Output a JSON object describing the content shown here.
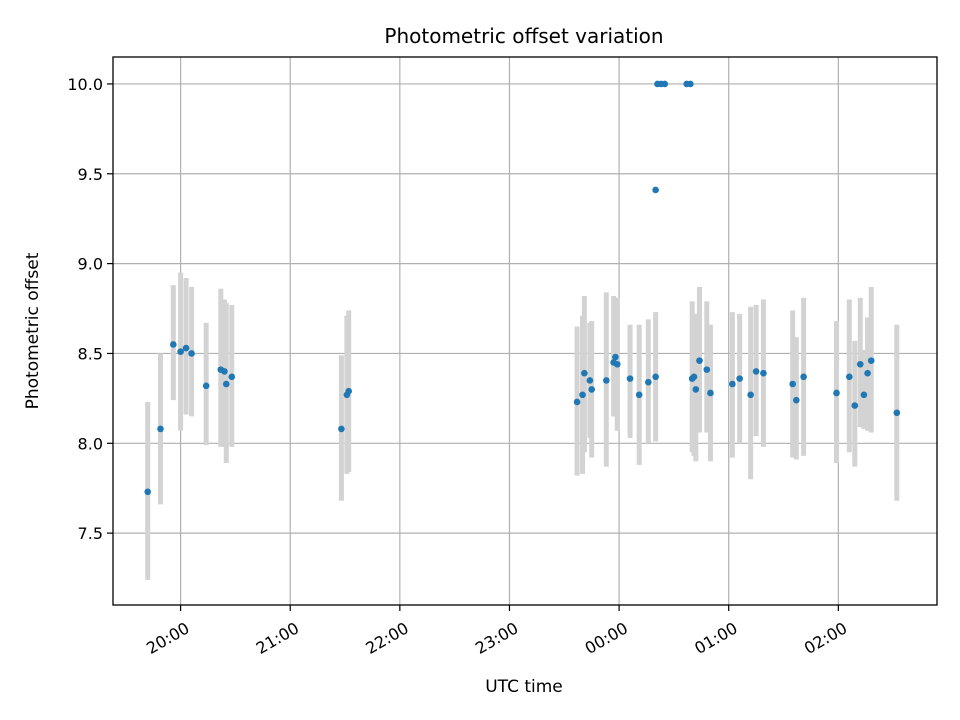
{
  "chart_data": {
    "type": "scatter",
    "title": "Photometric offset variation",
    "xlabel": "UTC time",
    "ylabel": "Photometric offset",
    "xlim": [
      "19:23",
      "02:54"
    ],
    "ylim": [
      7.1,
      10.15
    ],
    "yticks": [
      7.5,
      8.0,
      8.5,
      9.0,
      9.5,
      10.0
    ],
    "xticks": [
      "20:00",
      "21:00",
      "22:00",
      "23:00",
      "00:00",
      "01:00",
      "02:00"
    ],
    "grid": true,
    "colors": {
      "points": "#1f77b4",
      "errorbars": "#d3d3d3",
      "grid": "#b0b0b0"
    },
    "points": [
      {
        "x": "19:42",
        "y": 7.73,
        "lo": 7.24,
        "hi": 8.23
      },
      {
        "x": "19:49",
        "y": 8.08,
        "lo": 7.66,
        "hi": 8.5
      },
      {
        "x": "19:56",
        "y": 8.55,
        "lo": 8.24,
        "hi": 8.88
      },
      {
        "x": "20:00",
        "y": 8.51,
        "lo": 8.07,
        "hi": 8.95
      },
      {
        "x": "20:03",
        "y": 8.53,
        "lo": 8.16,
        "hi": 8.92
      },
      {
        "x": "20:06",
        "y": 8.5,
        "lo": 8.15,
        "hi": 8.87
      },
      {
        "x": "20:14",
        "y": 8.32,
        "lo": 7.99,
        "hi": 8.67
      },
      {
        "x": "20:22",
        "y": 8.41,
        "lo": 7.98,
        "hi": 8.86
      },
      {
        "x": "20:24",
        "y": 8.4,
        "lo": 7.98,
        "hi": 8.8
      },
      {
        "x": "20:25",
        "y": 8.33,
        "lo": 7.89,
        "hi": 8.78
      },
      {
        "x": "20:28",
        "y": 8.37,
        "lo": 7.98,
        "hi": 8.77
      },
      {
        "x": "21:28",
        "y": 8.08,
        "lo": 7.68,
        "hi": 8.49
      },
      {
        "x": "21:31",
        "y": 8.27,
        "lo": 7.83,
        "hi": 8.71
      },
      {
        "x": "21:32",
        "y": 8.29,
        "lo": 7.84,
        "hi": 8.74
      },
      {
        "x": "23:37",
        "y": 8.23,
        "lo": 7.82,
        "hi": 8.65
      },
      {
        "x": "23:40",
        "y": 8.27,
        "lo": 7.83,
        "hi": 8.71
      },
      {
        "x": "23:41",
        "y": 8.39,
        "lo": 7.95,
        "hi": 8.82
      },
      {
        "x": "23:44",
        "y": 8.35,
        "lo": 8.03,
        "hi": 8.67
      },
      {
        "x": "23:45",
        "y": 8.3,
        "lo": 7.92,
        "hi": 8.68
      },
      {
        "x": "23:53",
        "y": 8.35,
        "lo": 7.87,
        "hi": 8.84
      },
      {
        "x": "23:57",
        "y": 8.45,
        "lo": 8.15,
        "hi": 8.82
      },
      {
        "x": "23:58",
        "y": 8.48,
        "lo": 8.16,
        "hi": 8.8
      },
      {
        "x": "23:59",
        "y": 8.44,
        "lo": 8.07,
        "hi": 8.81
      },
      {
        "x": "00:06",
        "y": 8.36,
        "lo": 8.03,
        "hi": 8.66
      },
      {
        "x": "00:11",
        "y": 8.27,
        "lo": 7.88,
        "hi": 8.66
      },
      {
        "x": "00:16",
        "y": 8.34,
        "lo": 8.0,
        "hi": 8.69
      },
      {
        "x": "00:20",
        "y": 8.37,
        "lo": 8.01,
        "hi": 8.73
      },
      {
        "x": "00:20",
        "y": 9.41
      },
      {
        "x": "00:21",
        "y": 10.0
      },
      {
        "x": "00:23",
        "y": 10.0
      },
      {
        "x": "00:25",
        "y": 10.0
      },
      {
        "x": "00:37",
        "y": 10.0
      },
      {
        "x": "00:39",
        "y": 10.0
      },
      {
        "x": "00:40",
        "y": 8.36,
        "lo": 7.95,
        "hi": 8.79
      },
      {
        "x": "00:41",
        "y": 8.37,
        "lo": 7.93,
        "hi": 8.72
      },
      {
        "x": "00:42",
        "y": 8.3,
        "lo": 7.9,
        "hi": 8.72
      },
      {
        "x": "00:44",
        "y": 8.46,
        "lo": 8.06,
        "hi": 8.87
      },
      {
        "x": "00:48",
        "y": 8.41,
        "lo": 8.06,
        "hi": 8.79
      },
      {
        "x": "00:50",
        "y": 8.28,
        "lo": 7.9,
        "hi": 8.66
      },
      {
        "x": "01:02",
        "y": 8.33,
        "lo": 7.92,
        "hi": 8.73
      },
      {
        "x": "01:06",
        "y": 8.36,
        "lo": 8.0,
        "hi": 8.72
      },
      {
        "x": "01:12",
        "y": 8.27,
        "lo": 7.8,
        "hi": 8.76
      },
      {
        "x": "01:15",
        "y": 8.4,
        "lo": 8.04,
        "hi": 8.77
      },
      {
        "x": "01:19",
        "y": 8.39,
        "lo": 7.98,
        "hi": 8.8
      },
      {
        "x": "01:35",
        "y": 8.33,
        "lo": 7.92,
        "hi": 8.74
      },
      {
        "x": "01:37",
        "y": 8.24,
        "lo": 7.91,
        "hi": 8.59
      },
      {
        "x": "01:41",
        "y": 8.37,
        "lo": 7.93,
        "hi": 8.81
      },
      {
        "x": "01:59",
        "y": 8.28,
        "lo": 7.89,
        "hi": 8.68
      },
      {
        "x": "02:06",
        "y": 8.37,
        "lo": 7.95,
        "hi": 8.8
      },
      {
        "x": "02:09",
        "y": 8.21,
        "lo": 7.87,
        "hi": 8.57
      },
      {
        "x": "02:12",
        "y": 8.44,
        "lo": 8.09,
        "hi": 8.81
      },
      {
        "x": "02:14",
        "y": 8.27,
        "lo": 8.08,
        "hi": 8.52
      },
      {
        "x": "02:16",
        "y": 8.39,
        "lo": 8.07,
        "hi": 8.7
      },
      {
        "x": "02:18",
        "y": 8.46,
        "lo": 8.06,
        "hi": 8.87
      },
      {
        "x": "02:32",
        "y": 8.17,
        "lo": 7.68,
        "hi": 8.66
      }
    ]
  }
}
